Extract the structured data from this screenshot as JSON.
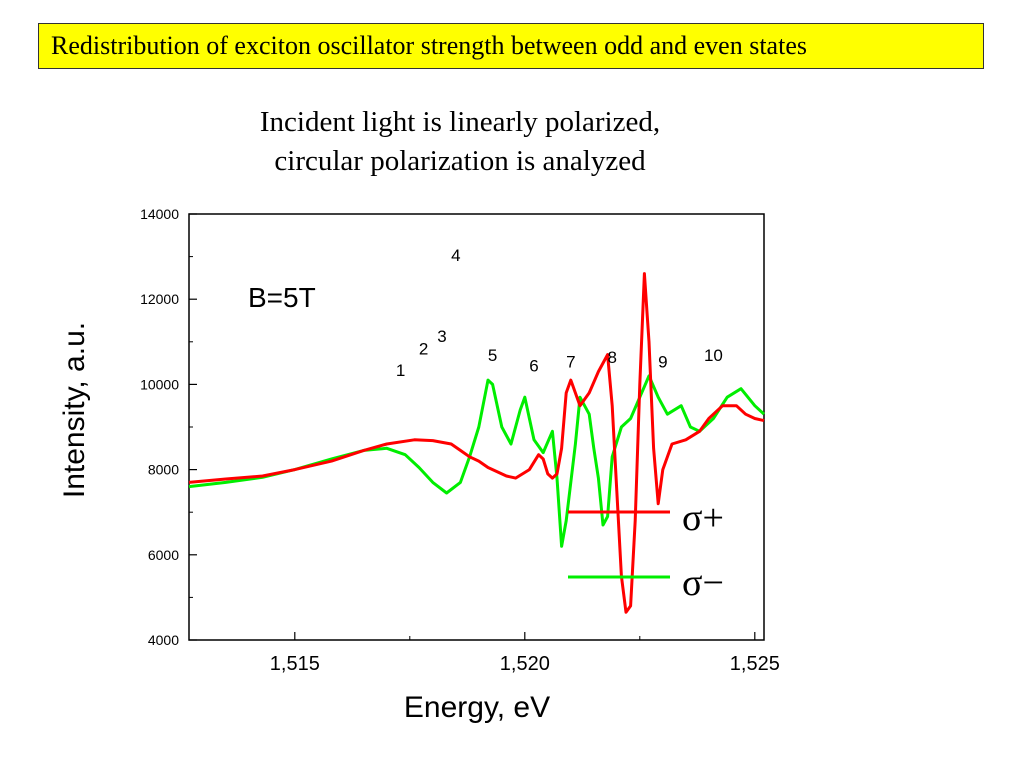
{
  "slide": {
    "title": "Redistribution of exciton oscillator strength between odd and even states",
    "subtitle_line1": "Incident light is linearly polarized,",
    "subtitle_line2": "circular polarization is analyzed"
  },
  "colors": {
    "title_bg": "#ffff00",
    "sigma_plus": "#ff0000",
    "sigma_minus": "#00ee00"
  },
  "chart_data": {
    "type": "line",
    "xlabel": "Energy, eV",
    "ylabel": "Intensity, a.u.",
    "xlim": [
      1.5127,
      1.5252
    ],
    "ylim": [
      4000,
      14000
    ],
    "x_ticks": [
      1.515,
      1.52,
      1.525
    ],
    "x_tick_labels": [
      "1,515",
      "1,520",
      "1,525"
    ],
    "y_ticks": [
      4000,
      6000,
      8000,
      10000,
      12000,
      14000
    ],
    "y_tick_labels": [
      "4000",
      "6000",
      "8000",
      "10000",
      "12000",
      "14000"
    ],
    "grid": false,
    "legend_position": "bottom-right",
    "annotation": "B=5T",
    "peak_labels": [
      {
        "label": "1",
        "x": 1.5173,
        "y": 10200
      },
      {
        "label": "2",
        "x": 1.5178,
        "y": 10700
      },
      {
        "label": "3",
        "x": 1.5182,
        "y": 11000
      },
      {
        "label": "4",
        "x": 1.5185,
        "y": 12900
      },
      {
        "label": "5",
        "x": 1.5193,
        "y": 10550
      },
      {
        "label": "6",
        "x": 1.5202,
        "y": 10300
      },
      {
        "label": "7",
        "x": 1.521,
        "y": 10400
      },
      {
        "label": "8",
        "x": 1.5219,
        "y": 10500
      },
      {
        "label": "9",
        "x": 1.523,
        "y": 10400
      },
      {
        "label": "10",
        "x": 1.5241,
        "y": 10550
      }
    ],
    "series": [
      {
        "name": "σ+",
        "color": "#ff0000",
        "points": [
          [
            1.5127,
            7700
          ],
          [
            1.5135,
            7780
          ],
          [
            1.5143,
            7850
          ],
          [
            1.515,
            8000
          ],
          [
            1.5158,
            8200
          ],
          [
            1.5165,
            8450
          ],
          [
            1.517,
            8600
          ],
          [
            1.5176,
            8700
          ],
          [
            1.518,
            8680
          ],
          [
            1.5184,
            8600
          ],
          [
            1.5186,
            8450
          ],
          [
            1.5188,
            8300
          ],
          [
            1.519,
            8200
          ],
          [
            1.5192,
            8050
          ],
          [
            1.5194,
            7950
          ],
          [
            1.5196,
            7850
          ],
          [
            1.5198,
            7800
          ],
          [
            1.5201,
            8000
          ],
          [
            1.5203,
            8350
          ],
          [
            1.5204,
            8250
          ],
          [
            1.5205,
            7900
          ],
          [
            1.5206,
            7800
          ],
          [
            1.5207,
            7900
          ],
          [
            1.5208,
            8500
          ],
          [
            1.5209,
            9800
          ],
          [
            1.521,
            10100
          ],
          [
            1.5212,
            9500
          ],
          [
            1.5214,
            9800
          ],
          [
            1.5216,
            10300
          ],
          [
            1.5218,
            10700
          ],
          [
            1.5219,
            9500
          ],
          [
            1.522,
            7500
          ],
          [
            1.5221,
            5500
          ],
          [
            1.5222,
            4650
          ],
          [
            1.5223,
            4800
          ],
          [
            1.5224,
            6800
          ],
          [
            1.5225,
            10000
          ],
          [
            1.5226,
            12600
          ],
          [
            1.5227,
            11000
          ],
          [
            1.5228,
            8500
          ],
          [
            1.5229,
            7200
          ],
          [
            1.523,
            8000
          ],
          [
            1.5232,
            8600
          ],
          [
            1.5235,
            8700
          ],
          [
            1.5238,
            8900
          ],
          [
            1.524,
            9200
          ],
          [
            1.5243,
            9500
          ],
          [
            1.5246,
            9500
          ],
          [
            1.5248,
            9300
          ],
          [
            1.525,
            9200
          ],
          [
            1.5252,
            9150
          ]
        ]
      },
      {
        "name": "σ−",
        "color": "#00ee00",
        "points": [
          [
            1.5127,
            7600
          ],
          [
            1.5135,
            7700
          ],
          [
            1.5143,
            7820
          ],
          [
            1.515,
            8000
          ],
          [
            1.5158,
            8250
          ],
          [
            1.5165,
            8450
          ],
          [
            1.517,
            8500
          ],
          [
            1.5174,
            8350
          ],
          [
            1.5177,
            8050
          ],
          [
            1.518,
            7700
          ],
          [
            1.5183,
            7450
          ],
          [
            1.5186,
            7700
          ],
          [
            1.5188,
            8300
          ],
          [
            1.519,
            9000
          ],
          [
            1.5192,
            10100
          ],
          [
            1.5193,
            10000
          ],
          [
            1.5195,
            9000
          ],
          [
            1.5197,
            8600
          ],
          [
            1.5199,
            9400
          ],
          [
            1.52,
            9700
          ],
          [
            1.5201,
            9200
          ],
          [
            1.5202,
            8700
          ],
          [
            1.5204,
            8400
          ],
          [
            1.5206,
            8900
          ],
          [
            1.5207,
            7800
          ],
          [
            1.5208,
            6200
          ],
          [
            1.5209,
            6800
          ],
          [
            1.5211,
            8600
          ],
          [
            1.5212,
            9700
          ],
          [
            1.5214,
            9300
          ],
          [
            1.5215,
            8500
          ],
          [
            1.5216,
            7800
          ],
          [
            1.5217,
            6700
          ],
          [
            1.5218,
            6900
          ],
          [
            1.5219,
            8300
          ],
          [
            1.5221,
            9000
          ],
          [
            1.5223,
            9200
          ],
          [
            1.5225,
            9700
          ],
          [
            1.5227,
            10200
          ],
          [
            1.5229,
            9700
          ],
          [
            1.5231,
            9300
          ],
          [
            1.5234,
            9500
          ],
          [
            1.5236,
            9000
          ],
          [
            1.5238,
            8900
          ],
          [
            1.5241,
            9200
          ],
          [
            1.5244,
            9700
          ],
          [
            1.5247,
            9900
          ],
          [
            1.525,
            9500
          ],
          [
            1.5252,
            9300
          ]
        ]
      }
    ]
  }
}
